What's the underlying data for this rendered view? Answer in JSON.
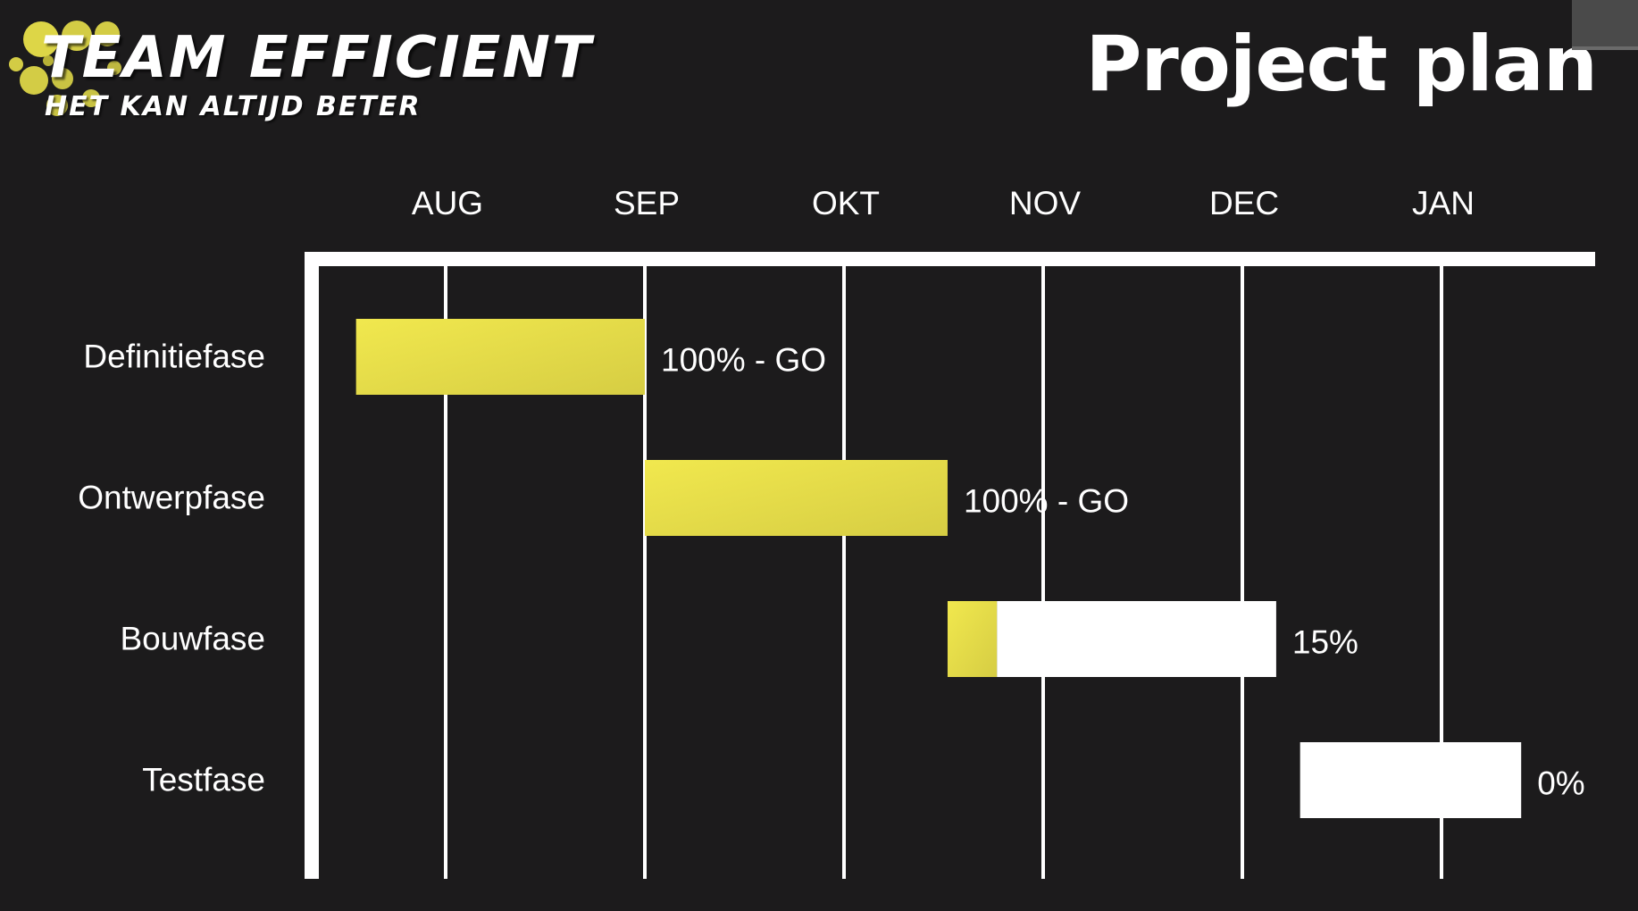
{
  "brand": {
    "title": "TEAM EFFICIENT",
    "subtitle": "HET KAN ALTIJD BETER",
    "accent_color": "#e8e04a"
  },
  "page": {
    "title": "Project plan"
  },
  "chart_data": {
    "type": "bar",
    "subtype": "gantt",
    "title": "Project plan",
    "x_unit": "month",
    "months": [
      "AUG",
      "SEP",
      "OKT",
      "NOV",
      "DEC",
      "JAN"
    ],
    "xlim": [
      -0.5,
      5.55
    ],
    "grid": true,
    "colors": {
      "progress": "#e5df45",
      "remaining": "#ffffff",
      "background": "#1c1b1c"
    },
    "tasks": [
      {
        "name": "Definitiefase",
        "start": -0.45,
        "end": 1.0,
        "progress": 1.0,
        "label": "100% - GO"
      },
      {
        "name": "Ontwerpfase",
        "start": 1.0,
        "end": 2.52,
        "progress": 1.0,
        "label": "100% - GO"
      },
      {
        "name": "Bouwfase",
        "start": 2.52,
        "end": 4.17,
        "progress": 0.15,
        "label": "15%"
      },
      {
        "name": "Testfase",
        "start": 4.29,
        "end": 5.4,
        "progress": 0.0,
        "label": "0%"
      }
    ]
  }
}
